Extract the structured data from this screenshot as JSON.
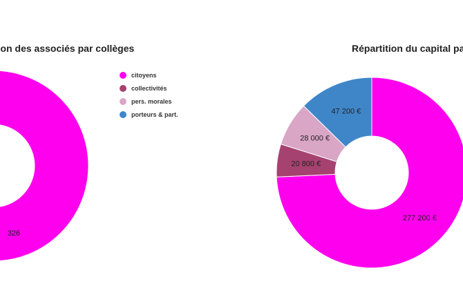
{
  "legend": {
    "items": [
      {
        "label": "citoyens",
        "color": "#ff00ee"
      },
      {
        "label": "collectivités",
        "color": "#a6426f"
      },
      {
        "label": "pers. morales",
        "color": "#d9a6c6"
      },
      {
        "label": "porteurs & part.",
        "color": "#3f86c8"
      }
    ]
  },
  "chart_data": [
    {
      "type": "pie",
      "subtype": "donut",
      "title": "rtition des associés par collèges",
      "categories": [
        "citoyens"
      ],
      "values": [
        326
      ],
      "data_labels": [
        "326"
      ],
      "colors": [
        "#ff00ee"
      ]
    },
    {
      "type": "pie",
      "subtype": "donut",
      "title": "Répartition du capital pa",
      "categories": [
        "citoyens",
        "collectivités",
        "pers. morales",
        "porteurs & part."
      ],
      "values": [
        277200,
        20800,
        28000,
        47200
      ],
      "data_labels": [
        "277 200 €",
        "20 800 €",
        "28 000 €",
        "47 200 €"
      ],
      "colors": [
        "#ff00ee",
        "#a6426f",
        "#d9a6c6",
        "#3f86c8"
      ]
    }
  ]
}
